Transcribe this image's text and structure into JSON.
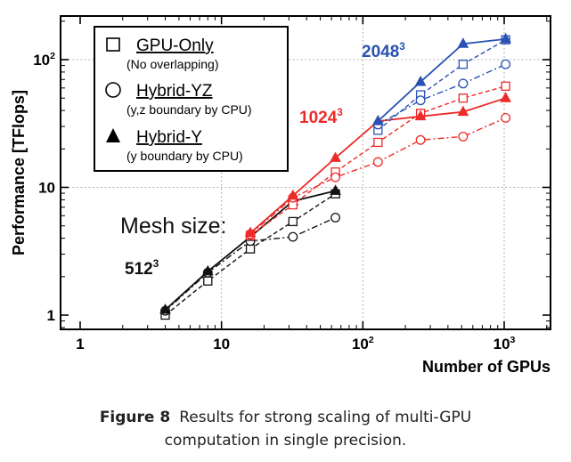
{
  "chart_data": {
    "type": "line",
    "xlabel": "Number of GPUs",
    "ylabel": "Performance [TFlops]",
    "x_scale": "log",
    "y_scale": "log",
    "xlim": [
      1,
      2000
    ],
    "ylim": [
      0.8,
      230
    ],
    "x_ticks": [
      {
        "value": 1,
        "label": "1"
      },
      {
        "value": 10,
        "label": "10"
      },
      {
        "value": 100,
        "label": "10",
        "exp": "2"
      },
      {
        "value": 1000,
        "label": "10",
        "exp": "3"
      }
    ],
    "y_ticks": [
      {
        "value": 1,
        "label": "1"
      },
      {
        "value": 10,
        "label": "10"
      },
      {
        "value": 100,
        "label": "10",
        "exp": "2"
      }
    ],
    "grid": "dotted",
    "legend_position": "top-left",
    "legend": [
      {
        "marker": "square",
        "name": "GPU-Only",
        "note": "(No overlapping)"
      },
      {
        "marker": "circle",
        "name": "Hybrid-YZ",
        "note": "(y,z boundary by CPU)"
      },
      {
        "marker": "triangle",
        "name": "Hybrid-Y",
        "note": "(y boundary by CPU)"
      }
    ],
    "annotations": [
      {
        "text": "Mesh size:",
        "target": "mesh-size"
      },
      {
        "base": "512",
        "exp": "3",
        "color": "#111111",
        "target": "512"
      },
      {
        "base": "1024",
        "exp": "3",
        "color": "#ee2a2a",
        "target": "1024"
      },
      {
        "base": "2048",
        "exp": "3",
        "color": "#2952b3",
        "target": "2048"
      }
    ],
    "series": [
      {
        "mesh": "512^3",
        "method": "GPU-Only",
        "marker": "square",
        "dash": "dashed",
        "color": "#111111",
        "x": [
          4,
          8,
          16,
          32,
          64
        ],
        "y": [
          1.0,
          1.85,
          3.3,
          5.4,
          8.9
        ]
      },
      {
        "mesh": "512^3",
        "method": "Hybrid-YZ",
        "marker": "circle",
        "dash": "dashdot",
        "color": "#111111",
        "x": [
          4,
          8,
          16,
          32,
          64
        ],
        "y": [
          1.08,
          2.15,
          3.8,
          4.1,
          5.8
        ]
      },
      {
        "mesh": "512^3",
        "method": "Hybrid-Y",
        "marker": "triangle",
        "dash": "solid",
        "color": "#111111",
        "x": [
          4,
          8,
          16,
          32,
          64
        ],
        "y": [
          1.1,
          2.2,
          4.1,
          7.8,
          9.4
        ]
      },
      {
        "mesh": "1024^3",
        "method": "GPU-Only",
        "marker": "square",
        "dash": "dashed",
        "color": "#ee2a2a",
        "x": [
          16,
          32,
          64,
          128,
          256,
          512,
          1024
        ],
        "y": [
          4.2,
          7.3,
          13.2,
          22.5,
          38,
          50,
          62
        ]
      },
      {
        "mesh": "1024^3",
        "method": "Hybrid-YZ",
        "marker": "circle",
        "dash": "dashdot",
        "color": "#ee2a2a",
        "x": [
          16,
          32,
          64,
          128,
          256,
          512,
          1024
        ],
        "y": [
          4.3,
          8.3,
          12.0,
          15.8,
          23.5,
          25,
          35
        ]
      },
      {
        "mesh": "1024^3",
        "method": "Hybrid-Y",
        "marker": "triangle",
        "dash": "solid",
        "color": "#ee2a2a",
        "x": [
          16,
          32,
          64,
          128,
          256,
          512,
          1024
        ],
        "y": [
          4.4,
          8.6,
          17,
          33,
          36,
          39,
          50
        ]
      },
      {
        "mesh": "2048^3",
        "method": "GPU-Only",
        "marker": "square",
        "dash": "dashed",
        "color": "#2952b3",
        "x": [
          128,
          256,
          512,
          1024
        ],
        "y": [
          28,
          53,
          92,
          143
        ]
      },
      {
        "mesh": "2048^3",
        "method": "Hybrid-YZ",
        "marker": "circle",
        "dash": "dashdot",
        "color": "#2952b3",
        "x": [
          128,
          256,
          512,
          1024
        ],
        "y": [
          31,
          48,
          65,
          92
        ]
      },
      {
        "mesh": "2048^3",
        "method": "Hybrid-Y",
        "marker": "triangle",
        "dash": "solid",
        "color": "#2952b3",
        "x": [
          128,
          256,
          512,
          1024
        ],
        "y": [
          33,
          67,
          133,
          145
        ]
      }
    ]
  },
  "caption": {
    "figure_label": "Figure 8",
    "line1": "Results for strong scaling of multi-GPU",
    "line2": "computation in single precision."
  }
}
